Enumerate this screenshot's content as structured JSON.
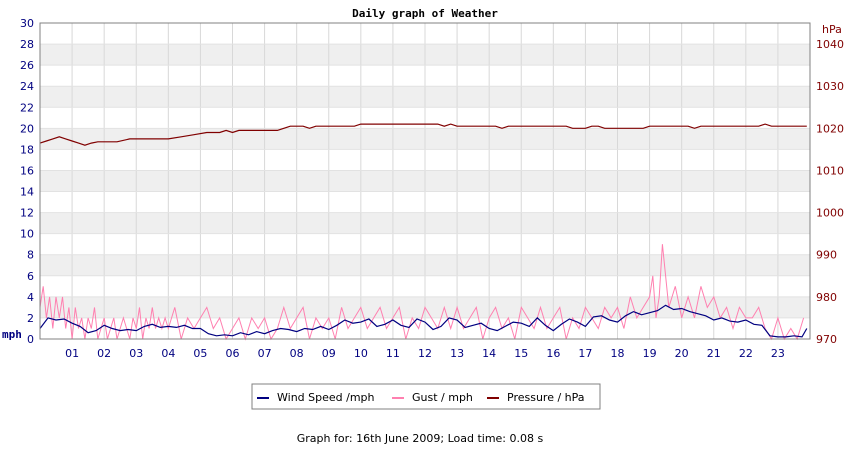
{
  "chart_data": {
    "type": "line",
    "title": "Daily graph of Weather",
    "ylabel_left": "mph",
    "ylabel_right": "hPa",
    "ylim_left": [
      0,
      30
    ],
    "ylim_right": [
      970,
      1045
    ],
    "yticks_left": [
      "0",
      "2",
      "4",
      "6",
      "8",
      "10",
      "12",
      "14",
      "16",
      "18",
      "20",
      "22",
      "24",
      "26",
      "28",
      "30"
    ],
    "yticks_right": [
      "970",
      "980",
      "990",
      "1000",
      "1010",
      "1020",
      "1030",
      "1040"
    ],
    "xticks": [
      "01",
      "02",
      "03",
      "04",
      "05",
      "06",
      "07",
      "08",
      "09",
      "10",
      "11",
      "12",
      "13",
      "14",
      "15",
      "16",
      "17",
      "18",
      "19",
      "20",
      "21",
      "22",
      "23"
    ],
    "xlim_hours": [
      0,
      24
    ],
    "grid": true,
    "legend_position": "bottom",
    "series": [
      {
        "name": "Wind Speed /mph",
        "axis": "left",
        "color": "#000080",
        "x": [
          0.0,
          0.25,
          0.5,
          0.75,
          1.0,
          1.25,
          1.5,
          1.75,
          2.0,
          2.25,
          2.5,
          2.75,
          3.0,
          3.25,
          3.5,
          3.75,
          4.0,
          4.25,
          4.5,
          4.75,
          5.0,
          5.25,
          5.5,
          5.75,
          6.0,
          6.25,
          6.5,
          6.75,
          7.0,
          7.25,
          7.5,
          7.75,
          8.0,
          8.25,
          8.5,
          8.75,
          9.0,
          9.25,
          9.5,
          9.75,
          10.0,
          10.25,
          10.5,
          10.75,
          11.0,
          11.25,
          11.5,
          11.75,
          12.0,
          12.25,
          12.5,
          12.75,
          13.0,
          13.25,
          13.5,
          13.75,
          14.0,
          14.25,
          14.5,
          14.75,
          15.0,
          15.25,
          15.5,
          15.75,
          16.0,
          16.25,
          16.5,
          16.75,
          17.0,
          17.25,
          17.5,
          17.75,
          18.0,
          18.25,
          18.5,
          18.75,
          19.0,
          19.25,
          19.5,
          19.75,
          20.0,
          20.25,
          20.5,
          20.75,
          21.0,
          21.25,
          21.5,
          21.75,
          22.0,
          22.25,
          22.5,
          22.75,
          23.0,
          23.25,
          23.5,
          23.75,
          23.9
        ],
        "y": [
          1,
          2,
          1.8,
          1.9,
          1.5,
          1.2,
          0.6,
          0.8,
          1.3,
          1.0,
          0.8,
          0.9,
          0.8,
          1.2,
          1.4,
          1.1,
          1.2,
          1.1,
          1.3,
          1.0,
          1.0,
          0.5,
          0.3,
          0.4,
          0.3,
          0.6,
          0.4,
          0.7,
          0.5,
          0.8,
          1.0,
          0.9,
          0.7,
          1.0,
          0.9,
          1.2,
          0.9,
          1.3,
          1.8,
          1.5,
          1.6,
          1.9,
          1.2,
          1.4,
          1.8,
          1.3,
          1.1,
          1.9,
          1.6,
          0.9,
          1.2,
          2.0,
          1.8,
          1.1,
          1.3,
          1.5,
          1.0,
          0.8,
          1.2,
          1.6,
          1.5,
          1.2,
          2.0,
          1.3,
          0.8,
          1.4,
          1.9,
          1.6,
          1.2,
          2.1,
          2.2,
          1.8,
          1.6,
          2.2,
          2.6,
          2.3,
          2.5,
          2.7,
          3.2,
          2.8,
          2.9,
          2.6,
          2.4,
          2.2,
          1.8,
          2.0,
          1.7,
          1.6,
          1.8,
          1.4,
          1.3,
          0.3,
          0.2,
          0.2,
          0.3,
          0.2,
          1.0
        ]
      },
      {
        "name": "Gust / mph",
        "axis": "left",
        "color": "#ff80b0",
        "x": [
          0.0,
          0.1,
          0.2,
          0.3,
          0.4,
          0.5,
          0.6,
          0.7,
          0.8,
          0.9,
          1.0,
          1.1,
          1.2,
          1.3,
          1.4,
          1.5,
          1.6,
          1.7,
          1.8,
          1.9,
          2.0,
          2.1,
          2.2,
          2.3,
          2.4,
          2.5,
          2.6,
          2.7,
          2.8,
          2.9,
          3.0,
          3.1,
          3.2,
          3.3,
          3.4,
          3.5,
          3.6,
          3.7,
          3.8,
          3.9,
          4.0,
          4.2,
          4.4,
          4.6,
          4.8,
          5.0,
          5.2,
          5.4,
          5.6,
          5.8,
          6.0,
          6.2,
          6.4,
          6.6,
          6.8,
          7.0,
          7.2,
          7.4,
          7.6,
          7.8,
          8.0,
          8.2,
          8.4,
          8.6,
          8.8,
          9.0,
          9.2,
          9.4,
          9.6,
          9.8,
          10.0,
          10.2,
          10.4,
          10.6,
          10.8,
          11.0,
          11.2,
          11.4,
          11.6,
          11.8,
          12.0,
          12.2,
          12.4,
          12.6,
          12.8,
          13.0,
          13.2,
          13.4,
          13.6,
          13.8,
          14.0,
          14.2,
          14.4,
          14.6,
          14.8,
          15.0,
          15.2,
          15.4,
          15.6,
          15.8,
          16.0,
          16.2,
          16.4,
          16.6,
          16.8,
          17.0,
          17.2,
          17.4,
          17.6,
          17.8,
          18.0,
          18.2,
          18.4,
          18.6,
          18.8,
          19.0,
          19.1,
          19.2,
          19.3,
          19.4,
          19.6,
          19.8,
          20.0,
          20.2,
          20.4,
          20.6,
          20.8,
          21.0,
          21.2,
          21.4,
          21.6,
          21.8,
          22.0,
          22.2,
          22.4,
          22.6,
          22.8,
          23.0,
          23.2,
          23.4,
          23.6,
          23.8
        ],
        "y": [
          3,
          5,
          2,
          4,
          1,
          4,
          2,
          4,
          1,
          3,
          0,
          3,
          1,
          2,
          0,
          2,
          1,
          3,
          0,
          1,
          2,
          0,
          1,
          2,
          0,
          1,
          2,
          1,
          0,
          2,
          1,
          3,
          0,
          2,
          1,
          3,
          1,
          2,
          1,
          2,
          1,
          3,
          0,
          2,
          1,
          2,
          3,
          1,
          2,
          0,
          1,
          2,
          0,
          2,
          1,
          2,
          0,
          1,
          3,
          1,
          2,
          3,
          0,
          2,
          1,
          2,
          0,
          3,
          1,
          2,
          3,
          1,
          2,
          3,
          1,
          2,
          3,
          0,
          2,
          1,
          3,
          2,
          1,
          3,
          1,
          3,
          1,
          2,
          3,
          0,
          2,
          3,
          1,
          2,
          0,
          3,
          2,
          1,
          3,
          1,
          2,
          3,
          0,
          2,
          1,
          3,
          2,
          1,
          3,
          2,
          3,
          1,
          4,
          2,
          3,
          4,
          6,
          2,
          4,
          9,
          3,
          5,
          2,
          4,
          2,
          5,
          3,
          4,
          2,
          3,
          1,
          3,
          2,
          2,
          3,
          1,
          0,
          2,
          0,
          1,
          0,
          2
        ]
      },
      {
        "name": "Pressure / hPa",
        "axis": "right",
        "color": "#800000",
        "x": [
          0.0,
          0.2,
          0.4,
          0.6,
          0.8,
          1.0,
          1.2,
          1.4,
          1.6,
          1.8,
          2.0,
          2.4,
          2.8,
          3.2,
          3.6,
          4.0,
          4.4,
          4.8,
          5.2,
          5.6,
          5.8,
          6.0,
          6.2,
          6.6,
          7.0,
          7.4,
          7.8,
          8.2,
          8.4,
          8.6,
          9.0,
          9.4,
          9.8,
          10.0,
          10.4,
          10.8,
          11.2,
          11.6,
          12.0,
          12.4,
          12.6,
          12.8,
          13.0,
          13.4,
          13.8,
          14.2,
          14.4,
          14.6,
          14.8,
          15.2,
          15.6,
          16.0,
          16.4,
          16.6,
          16.8,
          17.0,
          17.2,
          17.4,
          17.6,
          18.0,
          18.4,
          18.8,
          19.0,
          19.4,
          19.8,
          20.2,
          20.4,
          20.6,
          20.8,
          21.2,
          21.6,
          22.0,
          22.4,
          22.6,
          22.8,
          23.0,
          23.4,
          23.8,
          23.9
        ],
        "y": [
          1016.5,
          1017,
          1017.5,
          1018,
          1017.5,
          1017,
          1016.5,
          1016,
          1016.5,
          1016.8,
          1016.8,
          1016.8,
          1017.5,
          1017.5,
          1017.5,
          1017.5,
          1018,
          1018.5,
          1019,
          1019,
          1019.5,
          1019,
          1019.5,
          1019.5,
          1019.5,
          1019.5,
          1020.5,
          1020.5,
          1020,
          1020.5,
          1020.5,
          1020.5,
          1020.5,
          1021,
          1021,
          1021,
          1021,
          1021,
          1021,
          1021,
          1020.5,
          1021,
          1020.5,
          1020.5,
          1020.5,
          1020.5,
          1020,
          1020.5,
          1020.5,
          1020.5,
          1020.5,
          1020.5,
          1020.5,
          1020,
          1020,
          1020,
          1020.5,
          1020.5,
          1020,
          1020,
          1020,
          1020,
          1020.5,
          1020.5,
          1020.5,
          1020.5,
          1020,
          1020.5,
          1020.5,
          1020.5,
          1020.5,
          1020.5,
          1020.5,
          1021,
          1020.5,
          1020.5,
          1020.5,
          1020.5,
          1020.5
        ]
      }
    ]
  },
  "footer": "Graph for: 16th June 2009; Load time: 0.08 s"
}
